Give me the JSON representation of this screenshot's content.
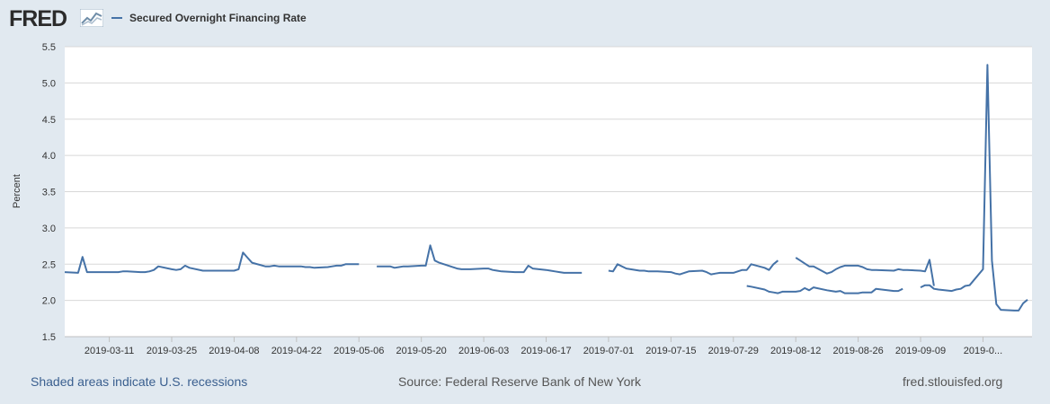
{
  "header": {
    "logo_text": "FRED",
    "legend_label": "Secured Overnight Financing Rate",
    "series_color": "#4572a7"
  },
  "footer": {
    "recessions_note": "Shaded areas indicate U.S. recessions",
    "source": "Source: Federal Reserve Bank of New York",
    "site": "fred.stlouisfed.org"
  },
  "chart_data": {
    "type": "line",
    "title": "",
    "xlabel": "",
    "ylabel": "Percent",
    "ylim": [
      1.5,
      5.5
    ],
    "yticks": [
      "1.5",
      "2.0",
      "2.5",
      "3.0",
      "3.5",
      "4.0",
      "4.5",
      "5.0",
      "5.5"
    ],
    "xlim": [
      "2019-03-01",
      "2019-09-30"
    ],
    "xticks": [
      "2019-03-11",
      "2019-03-25",
      "2019-04-08",
      "2019-04-22",
      "2019-05-06",
      "2019-05-20",
      "2019-06-03",
      "2019-06-17",
      "2019-07-01",
      "2019-07-15",
      "2019-07-29",
      "2019-08-12",
      "2019-08-26",
      "2019-09-09",
      "2019-0..."
    ],
    "grid": "horizontal",
    "series": [
      {
        "name": "Secured Overnight Financing Rate",
        "color": "#4572a7",
        "segments": [
          [
            [
              "2019-03-01",
              2.39
            ],
            [
              "2019-03-04",
              2.38
            ],
            [
              "2019-03-05",
              2.6
            ],
            [
              "2019-03-06",
              2.39
            ],
            [
              "2019-03-07",
              2.39
            ],
            [
              "2019-03-08",
              2.39
            ],
            [
              "2019-03-11",
              2.39
            ],
            [
              "2019-03-12",
              2.39
            ],
            [
              "2019-03-13",
              2.39
            ],
            [
              "2019-03-14",
              2.4
            ],
            [
              "2019-03-15",
              2.4
            ],
            [
              "2019-03-18",
              2.39
            ],
            [
              "2019-03-19",
              2.39
            ],
            [
              "2019-03-20",
              2.4
            ],
            [
              "2019-03-21",
              2.42
            ],
            [
              "2019-03-22",
              2.47
            ],
            [
              "2019-03-25",
              2.43
            ],
            [
              "2019-03-26",
              2.42
            ],
            [
              "2019-03-27",
              2.43
            ],
            [
              "2019-03-28",
              2.48
            ],
            [
              "2019-03-29",
              2.45
            ],
            [
              "2019-04-01",
              2.41
            ],
            [
              "2019-04-02",
              2.41
            ],
            [
              "2019-04-03",
              2.41
            ],
            [
              "2019-04-04",
              2.41
            ],
            [
              "2019-04-05",
              2.41
            ],
            [
              "2019-04-08",
              2.41
            ],
            [
              "2019-04-09",
              2.43
            ],
            [
              "2019-04-10",
              2.66
            ],
            [
              "2019-04-11",
              2.59
            ],
            [
              "2019-04-12",
              2.52
            ],
            [
              "2019-04-15",
              2.47
            ],
            [
              "2019-04-16",
              2.47
            ],
            [
              "2019-04-17",
              2.48
            ],
            [
              "2019-04-18",
              2.47
            ],
            [
              "2019-04-22",
              2.47
            ],
            [
              "2019-04-23",
              2.47
            ],
            [
              "2019-04-24",
              2.46
            ],
            [
              "2019-04-25",
              2.46
            ],
            [
              "2019-04-26",
              2.45
            ],
            [
              "2019-04-29",
              2.46
            ],
            [
              "2019-04-30",
              2.47
            ],
            [
              "2019-05-01",
              2.48
            ],
            [
              "2019-05-02",
              2.48
            ],
            [
              "2019-05-03",
              2.5
            ],
            [
              "2019-05-06",
              2.5
            ]
          ],
          [
            [
              "2019-05-10",
              2.47
            ],
            [
              "2019-05-13",
              2.47
            ],
            [
              "2019-05-14",
              2.45
            ],
            [
              "2019-05-15",
              2.46
            ],
            [
              "2019-05-16",
              2.47
            ],
            [
              "2019-05-17",
              2.47
            ],
            [
              "2019-05-20",
              2.48
            ],
            [
              "2019-05-21",
              2.48
            ],
            [
              "2019-05-22",
              2.76
            ],
            [
              "2019-05-23",
              2.55
            ],
            [
              "2019-05-24",
              2.52
            ],
            [
              "2019-05-28",
              2.44
            ],
            [
              "2019-05-29",
              2.43
            ],
            [
              "2019-05-30",
              2.43
            ],
            [
              "2019-05-31",
              2.43
            ],
            [
              "2019-06-03",
              2.44
            ],
            [
              "2019-06-04",
              2.44
            ],
            [
              "2019-06-05",
              2.42
            ],
            [
              "2019-06-06",
              2.41
            ],
            [
              "2019-06-07",
              2.4
            ],
            [
              "2019-06-10",
              2.39
            ],
            [
              "2019-06-11",
              2.39
            ],
            [
              "2019-06-12",
              2.39
            ],
            [
              "2019-06-13",
              2.48
            ],
            [
              "2019-06-14",
              2.44
            ],
            [
              "2019-06-17",
              2.42
            ],
            [
              "2019-06-18",
              2.41
            ],
            [
              "2019-06-19",
              2.4
            ],
            [
              "2019-06-20",
              2.39
            ],
            [
              "2019-06-21",
              2.38
            ],
            [
              "2019-06-24",
              2.38
            ],
            [
              "2019-06-25",
              2.38
            ]
          ],
          [
            [
              "2019-07-01",
              2.41
            ],
            [
              "2019-07-02",
              2.4
            ],
            [
              "2019-07-03",
              2.5
            ],
            [
              "2019-07-05",
              2.44
            ],
            [
              "2019-07-08",
              2.41
            ],
            [
              "2019-07-09",
              2.41
            ],
            [
              "2019-07-10",
              2.4
            ],
            [
              "2019-07-11",
              2.4
            ],
            [
              "2019-07-12",
              2.4
            ],
            [
              "2019-07-15",
              2.39
            ],
            [
              "2019-07-16",
              2.37
            ],
            [
              "2019-07-17",
              2.36
            ],
            [
              "2019-07-18",
              2.38
            ],
            [
              "2019-07-19",
              2.4
            ],
            [
              "2019-07-22",
              2.41
            ],
            [
              "2019-07-23",
              2.39
            ],
            [
              "2019-07-24",
              2.36
            ],
            [
              "2019-07-25",
              2.37
            ],
            [
              "2019-07-26",
              2.38
            ],
            [
              "2019-07-29",
              2.38
            ],
            [
              "2019-07-30",
              2.4
            ],
            [
              "2019-07-31",
              2.42
            ],
            [
              "2019-08-01",
              2.42
            ],
            [
              "2019-08-02",
              2.5
            ],
            [
              "2019-08-05",
              2.45
            ],
            [
              "2019-08-06",
              2.42
            ],
            [
              "2019-08-07",
              2.5
            ],
            [
              "2019-08-08",
              2.55
            ]
          ],
          [
            [
              "2019-08-12",
              2.59
            ],
            [
              "2019-08-13",
              2.55
            ],
            [
              "2019-08-14",
              2.51
            ],
            [
              "2019-08-15",
              2.47
            ],
            [
              "2019-08-16",
              2.47
            ],
            [
              "2019-08-19",
              2.37
            ],
            [
              "2019-08-20",
              2.39
            ],
            [
              "2019-08-21",
              2.43
            ],
            [
              "2019-08-22",
              2.46
            ],
            [
              "2019-08-23",
              2.48
            ],
            [
              "2019-08-26",
              2.48
            ],
            [
              "2019-08-27",
              2.46
            ],
            [
              "2019-08-28",
              2.43
            ],
            [
              "2019-08-29",
              2.42
            ],
            [
              "2019-08-30",
              2.42
            ],
            [
              "2019-09-03",
              2.41
            ],
            [
              "2019-09-04",
              2.43
            ],
            [
              "2019-09-05",
              2.42
            ],
            [
              "2019-09-06",
              2.42
            ],
            [
              "2019-09-09",
              2.41
            ],
            [
              "2019-09-10",
              2.4
            ],
            [
              "2019-09-11",
              2.56
            ],
            [
              "2019-09-12",
              2.2
            ]
          ],
          [
            [
              "2019-08-01",
              2.2
            ],
            [
              "2019-08-02",
              2.19
            ],
            [
              "2019-08-05",
              2.15
            ],
            [
              "2019-08-06",
              2.12
            ],
            [
              "2019-08-07",
              2.11
            ],
            [
              "2019-08-08",
              2.1
            ],
            [
              "2019-08-09",
              2.12
            ],
            [
              "2019-08-12",
              2.12
            ],
            [
              "2019-08-13",
              2.13
            ],
            [
              "2019-08-14",
              2.17
            ],
            [
              "2019-08-15",
              2.14
            ],
            [
              "2019-08-16",
              2.18
            ],
            [
              "2019-08-19",
              2.14
            ],
            [
              "2019-08-20",
              2.13
            ],
            [
              "2019-08-21",
              2.12
            ],
            [
              "2019-08-22",
              2.13
            ],
            [
              "2019-08-23",
              2.1
            ],
            [
              "2019-08-26",
              2.1
            ],
            [
              "2019-08-27",
              2.11
            ],
            [
              "2019-08-28",
              2.11
            ],
            [
              "2019-08-29",
              2.11
            ],
            [
              "2019-08-30",
              2.16
            ],
            [
              "2019-09-03",
              2.13
            ],
            [
              "2019-09-04",
              2.13
            ],
            [
              "2019-09-05",
              2.16
            ]
          ],
          [
            [
              "2019-09-09",
              2.18
            ],
            [
              "2019-09-10",
              2.21
            ],
            [
              "2019-09-11",
              2.21
            ],
            [
              "2019-09-12",
              2.16
            ],
            [
              "2019-09-13",
              2.15
            ],
            [
              "2019-09-16",
              2.13
            ],
            [
              "2019-09-17",
              2.15
            ],
            [
              "2019-09-18",
              2.16
            ],
            [
              "2019-09-19",
              2.2
            ],
            [
              "2019-09-20",
              2.21
            ],
            [
              "2019-09-23",
              2.43
            ],
            [
              "2019-09-24",
              5.25
            ],
            [
              "2019-09-25",
              2.55
            ],
            [
              "2019-09-26",
              1.95
            ],
            [
              "2019-09-27",
              1.87
            ],
            [
              "2019-09-30",
              1.86
            ],
            [
              "2019-10-01",
              1.86
            ],
            [
              "2019-10-02",
              1.96
            ],
            [
              "2019-10-03",
              2.01
            ]
          ]
        ]
      }
    ]
  }
}
